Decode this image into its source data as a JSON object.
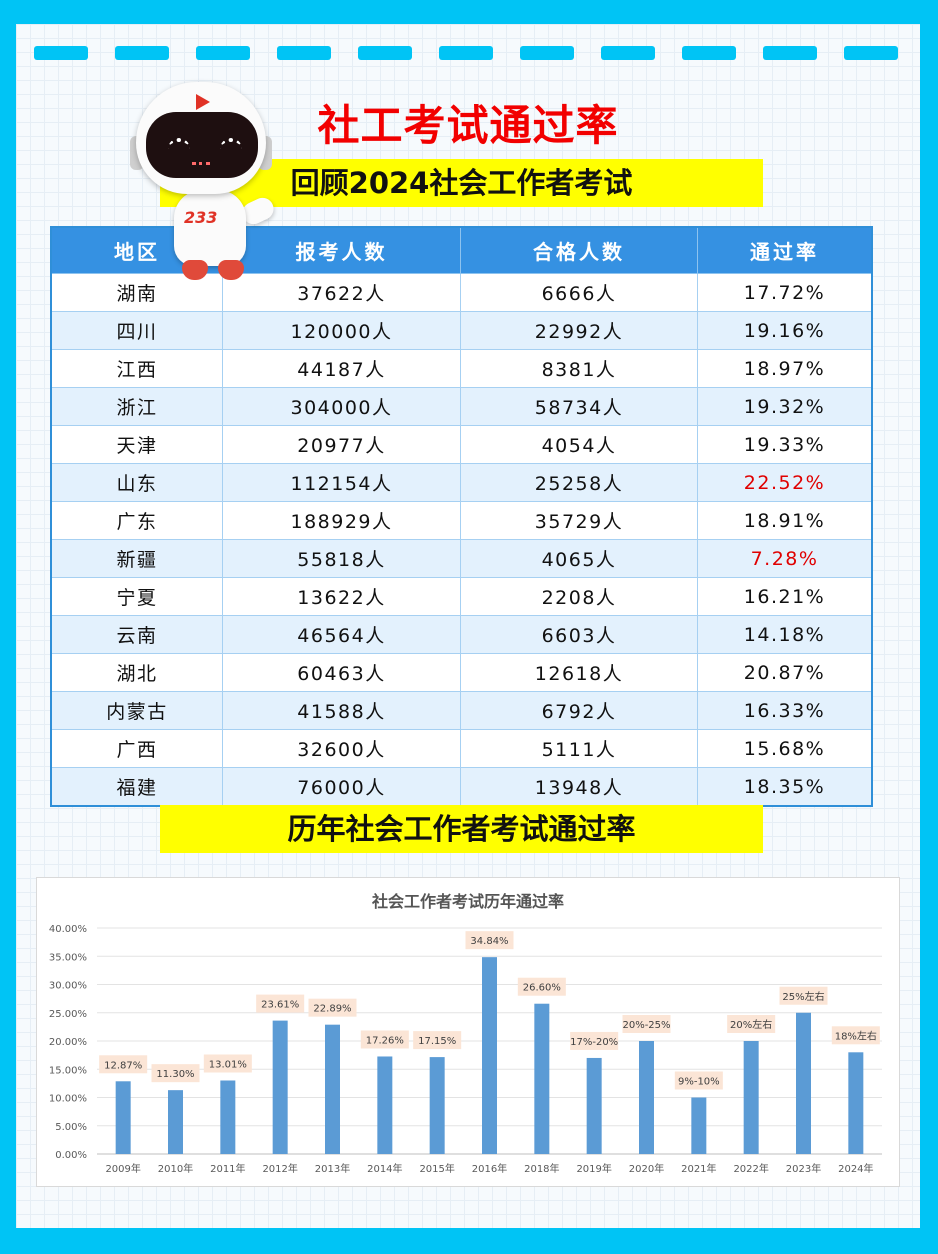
{
  "title": "社工考试通过率",
  "section1_title": "回顾2024社会工作者考试",
  "mascot_number": "233",
  "table": {
    "headers": [
      "地区",
      "报考人数",
      "合格人数",
      "通过率"
    ],
    "rows": [
      {
        "region": "湖南",
        "applicants": "37622人",
        "passed": "6666人",
        "rate": "17.72%",
        "highlight": false
      },
      {
        "region": "四川",
        "applicants": "120000人",
        "passed": "22992人",
        "rate": "19.16%",
        "highlight": false
      },
      {
        "region": "江西",
        "applicants": "44187人",
        "passed": "8381人",
        "rate": "18.97%",
        "highlight": false
      },
      {
        "region": "浙江",
        "applicants": "304000人",
        "passed": "58734人",
        "rate": "19.32%",
        "highlight": false
      },
      {
        "region": "天津",
        "applicants": "20977人",
        "passed": "4054人",
        "rate": "19.33%",
        "highlight": false
      },
      {
        "region": "山东",
        "applicants": "112154人",
        "passed": "25258人",
        "rate": "22.52%",
        "highlight": true
      },
      {
        "region": "广东",
        "applicants": "188929人",
        "passed": "35729人",
        "rate": "18.91%",
        "highlight": false
      },
      {
        "region": "新疆",
        "applicants": "55818人",
        "passed": "4065人",
        "rate": "7.28%",
        "highlight": true
      },
      {
        "region": "宁夏",
        "applicants": "13622人",
        "passed": "2208人",
        "rate": "16.21%",
        "highlight": false
      },
      {
        "region": "云南",
        "applicants": "46564人",
        "passed": "6603人",
        "rate": "14.18%",
        "highlight": false
      },
      {
        "region": "湖北",
        "applicants": "60463人",
        "passed": "12618人",
        "rate": "20.87%",
        "highlight": false
      },
      {
        "region": "内蒙古",
        "applicants": "41588人",
        "passed": "6792人",
        "rate": "16.33%",
        "highlight": false
      },
      {
        "region": "广西",
        "applicants": "32600人",
        "passed": "5111人",
        "rate": "15.68%",
        "highlight": false
      },
      {
        "region": "福建",
        "applicants": "76000人",
        "passed": "13948人",
        "rate": "18.35%",
        "highlight": false
      }
    ]
  },
  "section2_title": "历年社会工作者考试通过率",
  "colors": {
    "background": "#00c4f5",
    "title_red": "#f20000",
    "banner_yellow": "#ffff00",
    "header_blue": "#3591e2",
    "highlight_red": "#e00000",
    "bar_blue": "#5b9bd5",
    "label_bg": "#fbe5d6"
  },
  "chart_data": {
    "type": "bar",
    "title": "社会工作者考试历年通过率",
    "categories": [
      "2009年",
      "2010年",
      "2011年",
      "2012年",
      "2013年",
      "2014年",
      "2015年",
      "2016年",
      "2018年",
      "2019年",
      "2020年",
      "2021年",
      "2022年",
      "2023年",
      "2024年"
    ],
    "values": [
      12.87,
      11.3,
      13.01,
      23.61,
      22.89,
      17.26,
      17.15,
      34.84,
      26.6,
      17,
      20,
      10,
      20,
      25,
      18
    ],
    "data_labels": [
      "12.87%",
      "11.30%",
      "13.01%",
      "23.61%",
      "22.89%",
      "17.26%",
      "17.15%",
      "34.84%",
      "26.60%",
      "17%-20%",
      "20%-25%",
      "9%-10%",
      "20%左右",
      "25%左右",
      "18%左右"
    ],
    "ylim": [
      0,
      40
    ],
    "yticks": [
      0,
      5,
      10,
      15,
      20,
      25,
      30,
      35,
      40
    ],
    "ytick_labels": [
      "0.00%",
      "5.00%",
      "10.00%",
      "15.00%",
      "20.00%",
      "25.00%",
      "30.00%",
      "35.00%",
      "40.00%"
    ],
    "xlabel": "",
    "ylabel": "",
    "grid": true,
    "legend": false
  }
}
